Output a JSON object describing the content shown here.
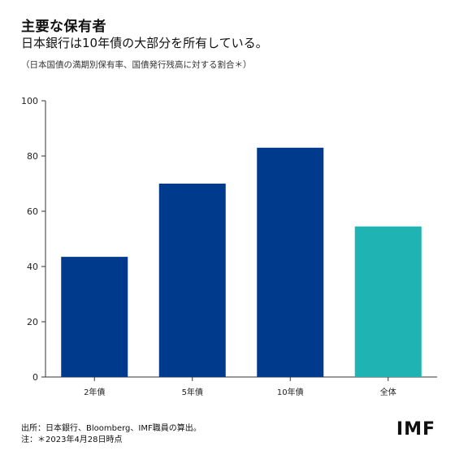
{
  "header": {
    "title": "主要な保有者",
    "subtitle": "日本銀行は10年債の大部分を所有している。",
    "note": "（日本国債の満期別保有率、国債発行残高に対する割合＊）"
  },
  "footer": {
    "source": "出所：日本銀行、Bloomberg、IMF職員の算出。",
    "note": "注：＊2023年4月28日時点"
  },
  "logo_text": "IMF",
  "chart_data": {
    "type": "bar",
    "title": "",
    "xlabel": "",
    "ylabel": "",
    "categories": [
      "2年債",
      "5年債",
      "10年債",
      "全体"
    ],
    "values": [
      43.5,
      70,
      83,
      54.5
    ],
    "colors": [
      "#003a8c",
      "#003a8c",
      "#003a8c",
      "#1fb3b3"
    ],
    "ylim": [
      0,
      100
    ],
    "yticks": [
      0,
      20,
      40,
      60,
      80,
      100
    ],
    "grid": false,
    "legend": "none"
  }
}
